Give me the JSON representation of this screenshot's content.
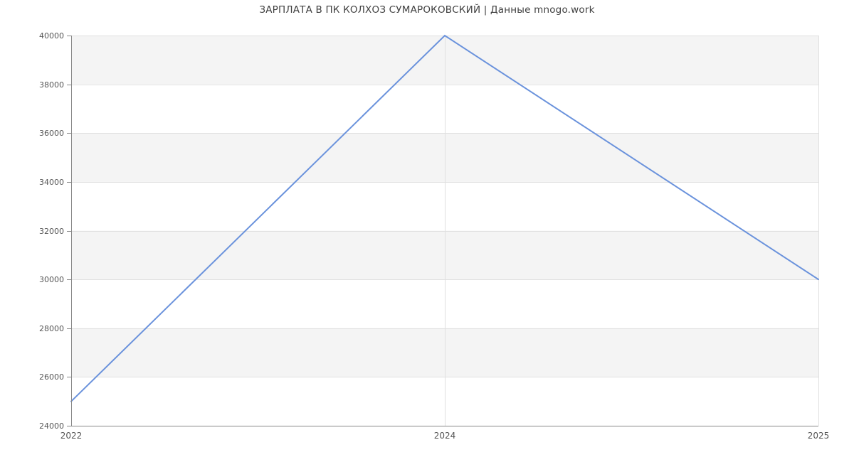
{
  "chart": {
    "title": "ЗАРПЛАТА В ПК КОЛХОЗ СУМАРОКОВСКИЙ | Данные mnogo.work"
  },
  "chart_data": {
    "type": "line",
    "title": "ЗАРПЛАТА В ПК КОЛХОЗ СУМАРОКОВСКИЙ | Данные mnogo.work",
    "categories": [
      "2022",
      "2024",
      "2025"
    ],
    "values": [
      25000,
      40000,
      30000
    ],
    "xlabel": "",
    "ylabel": "",
    "ylim": [
      24000,
      40000
    ],
    "yticks": [
      24000,
      26000,
      28000,
      30000,
      32000,
      34000,
      36000,
      38000,
      40000
    ],
    "grid": true,
    "legend": false,
    "band_pattern": "alternating horizontal bands, gray between 26000-28000, 30000-32000, 34000-36000, 38000-40000",
    "colors": {
      "line": "#6a92dc",
      "band": "#f4f4f4",
      "gridline": "#e0e0e0",
      "axis": "#888888",
      "tick_label": "#555555",
      "title": "#404040",
      "background": "#ffffff"
    }
  }
}
